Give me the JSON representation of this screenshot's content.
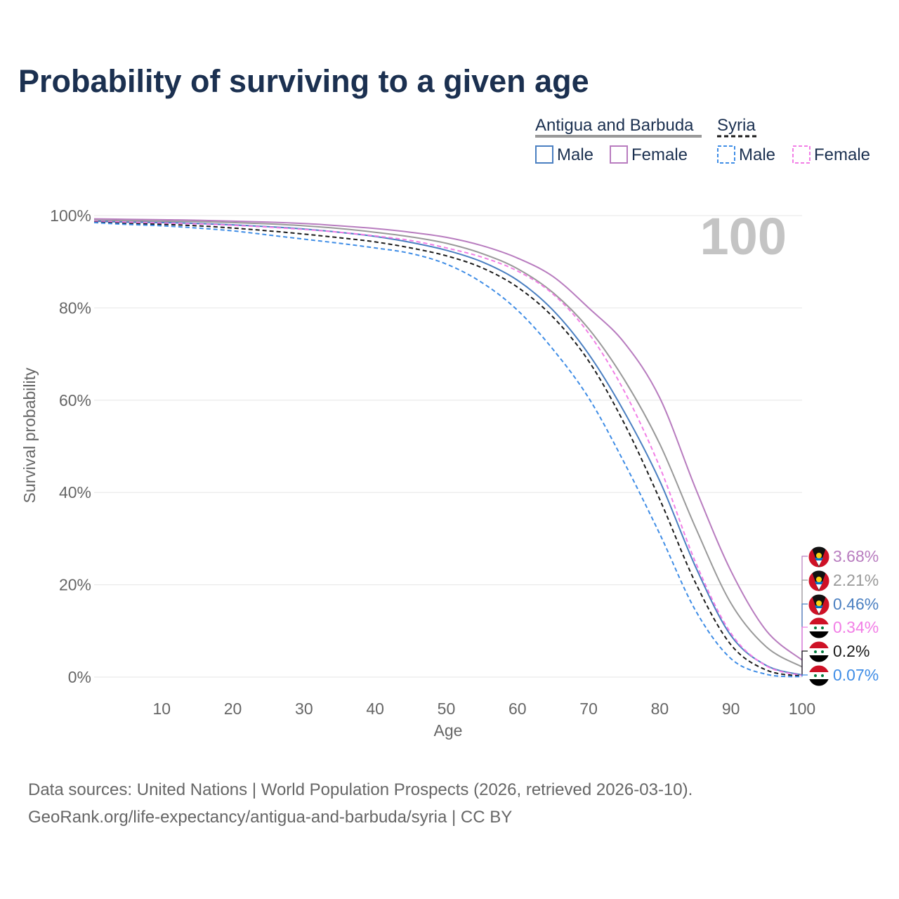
{
  "page_title": "Probability of surviving to a given age",
  "watermark_age": "100",
  "legend": {
    "groups": [
      {
        "country": "Antigua and Barbuda",
        "items": [
          "Male",
          "Female"
        ],
        "style": "solid"
      },
      {
        "country": "Syria",
        "items": [
          "Male",
          "Female"
        ],
        "style": "dashed"
      }
    ]
  },
  "footer": {
    "line1": "Data sources: United Nations | World Population Prospects (2026, retrieved 2026-03-10).",
    "line2": "GeoRank.org/life-expectancy/antigua-and-barbuda/syria | CC BY"
  },
  "end_labels": [
    {
      "text": "3.68%",
      "series": "Antigua and Barbuda Female",
      "flag": "antigua"
    },
    {
      "text": "2.21%",
      "series": "Antigua and Barbuda Total",
      "flag": "antigua"
    },
    {
      "text": "0.46%",
      "series": "Antigua and Barbuda Male",
      "flag": "antigua"
    },
    {
      "text": "0.34%",
      "series": "Syria Female",
      "flag": "syria"
    },
    {
      "text": "0.2%",
      "series": "Syria Total",
      "flag": "syria"
    },
    {
      "text": "0.07%",
      "series": "Syria Male",
      "flag": "syria"
    }
  ],
  "chart_data": {
    "type": "line",
    "title": "Probability of surviving to a given age",
    "xlabel": "Age",
    "ylabel": "Survival probability",
    "xlim": [
      0.5,
      100
    ],
    "ylim": [
      0,
      100
    ],
    "xticks": [
      10,
      20,
      30,
      40,
      50,
      60,
      70,
      80,
      90,
      100
    ],
    "yticks": [
      0,
      20,
      40,
      60,
      80,
      100
    ],
    "ytick_labels": [
      "0%",
      "20%",
      "40%",
      "60%",
      "80%",
      "100%"
    ],
    "grid": true,
    "x": [
      0,
      5,
      10,
      15,
      20,
      25,
      30,
      35,
      40,
      45,
      50,
      55,
      60,
      65,
      70,
      75,
      80,
      85,
      90,
      95,
      100
    ],
    "series": [
      {
        "name": "Antigua and Barbuda Female",
        "color": "#b87cbf",
        "dashed": false,
        "values": [
          99.3,
          99.2,
          99.1,
          99.0,
          98.8,
          98.6,
          98.3,
          97.8,
          97.2,
          96.4,
          95.3,
          93.5,
          90.8,
          86.8,
          80.0,
          72.5,
          60.5,
          41.0,
          23.0,
          10.0,
          3.68
        ]
      },
      {
        "name": "Antigua and Barbuda Total",
        "color": "#999999",
        "dashed": false,
        "values": [
          99.0,
          98.9,
          98.8,
          98.7,
          98.5,
          98.2,
          97.8,
          97.2,
          96.4,
          95.4,
          94.0,
          91.8,
          88.5,
          83.3,
          75.5,
          64.5,
          50.5,
          32.5,
          16.0,
          6.5,
          2.21
        ]
      },
      {
        "name": "Antigua and Barbuda Male",
        "color": "#4a7fc1",
        "dashed": false,
        "values": [
          98.8,
          98.6,
          98.5,
          98.3,
          98.0,
          97.6,
          97.1,
          96.4,
          95.5,
          94.2,
          92.5,
          90.0,
          86.0,
          79.5,
          70.0,
          57.5,
          42.5,
          24.0,
          9.0,
          2.5,
          0.46
        ]
      },
      {
        "name": "Syria Female",
        "color": "#f27ee6",
        "dashed": true,
        "values": [
          98.8,
          98.6,
          98.4,
          98.2,
          97.9,
          97.5,
          97.0,
          96.4,
          95.6,
          94.6,
          93.0,
          91.0,
          88.0,
          83.0,
          74.5,
          62.0,
          45.5,
          25.0,
          9.5,
          2.4,
          0.34
        ]
      },
      {
        "name": "Syria Total",
        "color": "#1a1a1a",
        "dashed": true,
        "values": [
          98.6,
          98.3,
          98.1,
          97.8,
          97.3,
          96.7,
          96.0,
          95.2,
          94.3,
          93.0,
          91.3,
          88.7,
          84.5,
          78.0,
          68.5,
          55.0,
          38.5,
          20.5,
          7.0,
          1.5,
          0.2
        ]
      },
      {
        "name": "Syria Male",
        "color": "#3f8de6",
        "dashed": true,
        "values": [
          98.5,
          98.1,
          97.8,
          97.3,
          96.7,
          95.8,
          94.9,
          94.0,
          93.0,
          91.8,
          89.5,
          85.5,
          79.5,
          71.0,
          60.5,
          46.5,
          31.0,
          14.5,
          4.0,
          0.6,
          0.07
        ]
      }
    ]
  }
}
